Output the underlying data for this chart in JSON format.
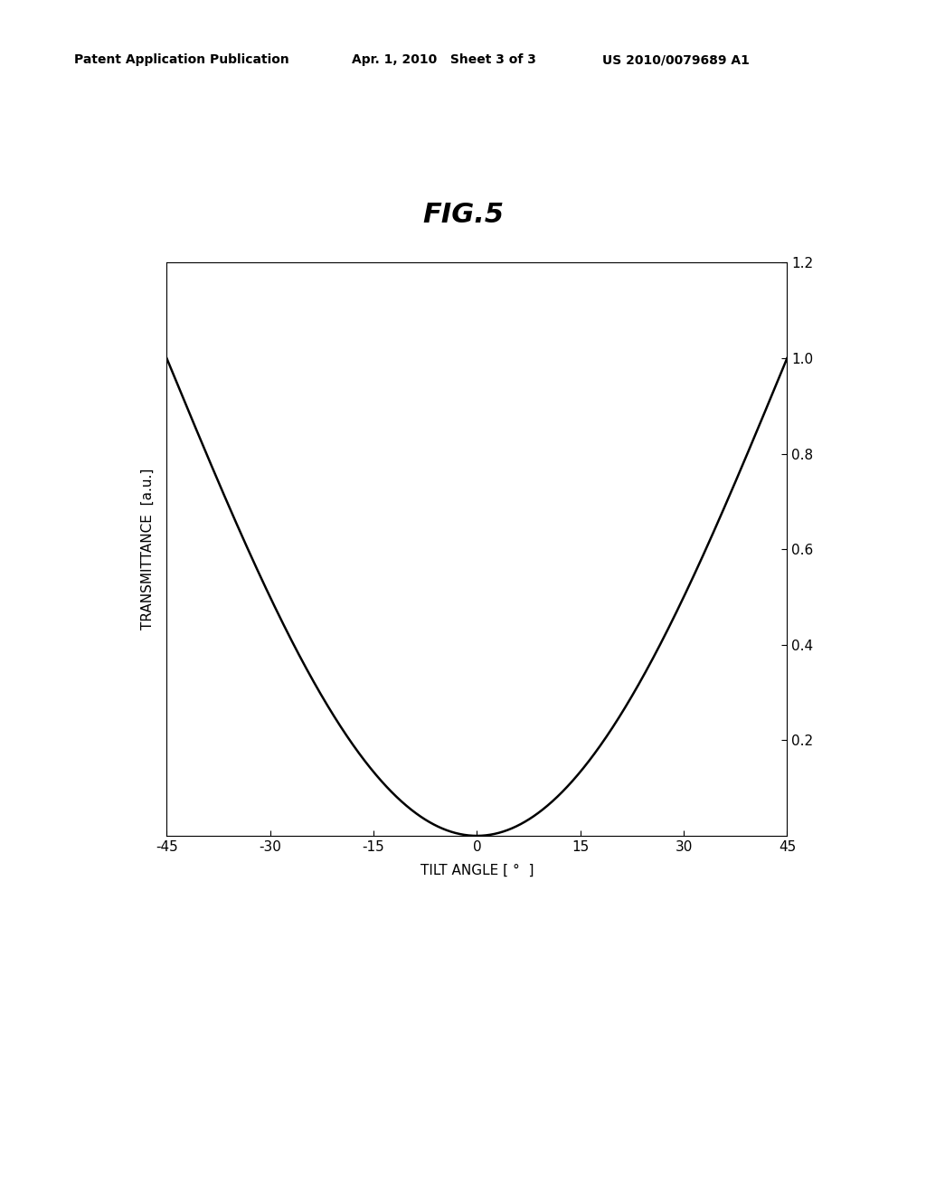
{
  "title": "FIG.5",
  "xlabel": "TILT ANGLE [ °  ]",
  "ylabel": "TRANSMITTANCE  [a.u.]",
  "xlim": [
    -45,
    45
  ],
  "ylim": [
    0,
    1.2
  ],
  "xticks": [
    -45,
    -30,
    -15,
    0,
    15,
    30,
    45
  ],
  "yticks": [
    0.2,
    0.4,
    0.6,
    0.8,
    1.0,
    1.2
  ],
  "background_color": "#ffffff",
  "line_color": "#000000",
  "line_width": 1.8,
  "patent_header_left": "Patent Application Publication",
  "patent_header_mid": "Apr. 1, 2010   Sheet 3 of 3",
  "patent_header_right": "US 2010/0079689 A1",
  "title_fontsize": 22,
  "axis_label_fontsize": 11,
  "tick_fontsize": 11,
  "header_fontsize": 10
}
